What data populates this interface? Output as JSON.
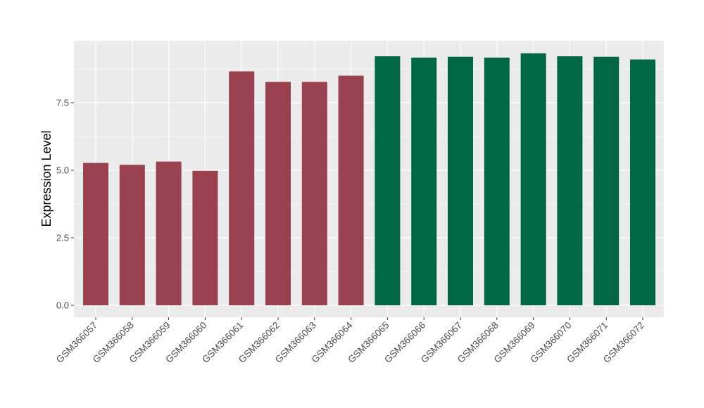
{
  "chart_data": {
    "type": "bar",
    "title": "",
    "xlabel": "",
    "ylabel": "Expression Level",
    "ylim": [
      0,
      9.8
    ],
    "yticks": [
      0.0,
      2.5,
      5.0,
      7.5
    ],
    "ytick_labels": [
      "0.0",
      "2.5",
      "5.0",
      "7.5"
    ],
    "grid": true,
    "legend": "none",
    "categories": [
      "GSM366057",
      "GSM366058",
      "GSM366059",
      "GSM366060",
      "GSM366061",
      "GSM366062",
      "GSM366063",
      "GSM366064",
      "GSM366065",
      "GSM366066",
      "GSM366067",
      "GSM366068",
      "GSM366069",
      "GSM366070",
      "GSM366071",
      "GSM366072"
    ],
    "values": [
      5.27,
      5.2,
      5.32,
      4.98,
      8.66,
      8.27,
      8.27,
      8.5,
      9.22,
      9.17,
      9.2,
      9.17,
      9.33,
      9.22,
      9.2,
      9.1
    ],
    "group_index": [
      0,
      0,
      0,
      0,
      0,
      0,
      0,
      0,
      1,
      1,
      1,
      1,
      1,
      1,
      1,
      1
    ],
    "group_colors": [
      "#99414e",
      "#006644"
    ],
    "panel_background": "#ebebeb",
    "grid_color": "#ffffff"
  }
}
